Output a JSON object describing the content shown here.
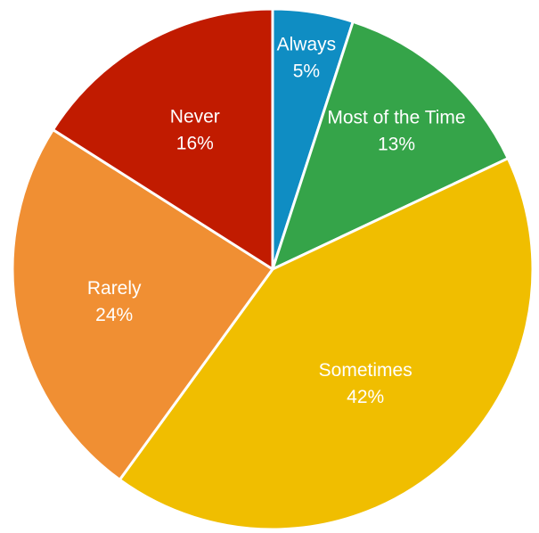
{
  "chart_data": {
    "type": "pie",
    "slices": [
      {
        "label": "Always",
        "percent_label": "5%",
        "value": 5,
        "color": "#0F8DC3"
      },
      {
        "label": "Most of the Time",
        "percent_label": "13%",
        "value": 13,
        "color": "#35A449"
      },
      {
        "label": "Sometimes",
        "percent_label": "42%",
        "value": 42,
        "color": "#F0BE00"
      },
      {
        "label": "Rarely",
        "percent_label": "24%",
        "value": 24,
        "color": "#F08F33"
      },
      {
        "label": "Never",
        "percent_label": "16%",
        "value": 16,
        "color": "#C11B00"
      }
    ],
    "start_angle": "top",
    "direction": "clockwise",
    "legend": "none",
    "title": ""
  }
}
